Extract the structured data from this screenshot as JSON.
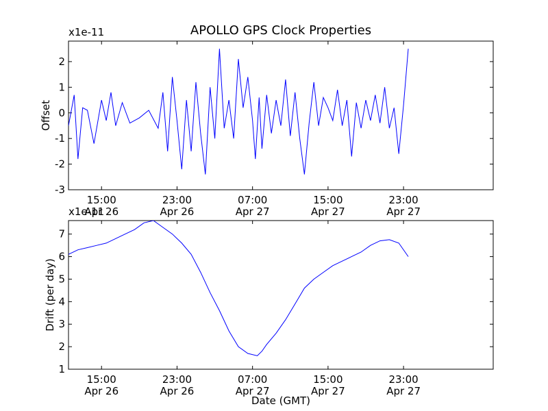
{
  "chart_data": [
    {
      "type": "line",
      "title": "APOLLO GPS Clock Properties",
      "ylabel": "Offset",
      "xlabel": "",
      "scale_label": "x1e-11",
      "ylim": [
        -3,
        2.8
      ],
      "yticks": [
        -3,
        -2,
        -1,
        0,
        1,
        2
      ],
      "xlim": [
        11.5,
        56.5
      ],
      "xtick_labels": [
        {
          "x": 15,
          "line1": "15:00",
          "line2": "Apr 26"
        },
        {
          "x": 23,
          "line1": "23:00",
          "line2": "Apr 26"
        },
        {
          "x": 31,
          "line1": "07:00",
          "line2": "Apr 27"
        },
        {
          "x": 39,
          "line1": "15:00",
          "line2": "Apr 27"
        },
        {
          "x": 47,
          "line1": "23:00",
          "line2": "Apr 27"
        }
      ],
      "color": "#0000ff",
      "series": [
        {
          "x": [
            11.5,
            12.1,
            12.5,
            13,
            13.5,
            14.2,
            15,
            15.5,
            16,
            16.5,
            17.2,
            18,
            19,
            20,
            21,
            21.5,
            22,
            22.5,
            23,
            23.5,
            24,
            24.5,
            25,
            25.5,
            26,
            26.5,
            27,
            27.5,
            28,
            28.5,
            29,
            29.5,
            30,
            30.5,
            31,
            31.3,
            31.7,
            32,
            32.5,
            33,
            33.5,
            34,
            34.5,
            35,
            35.5,
            36,
            36.5,
            37,
            37.5,
            38,
            38.5,
            39,
            39.5,
            40,
            40.5,
            41,
            41.5,
            42,
            42.5,
            43,
            43.5,
            44,
            44.5,
            45,
            45.5,
            46,
            46.5,
            47,
            47.5
          ],
          "values": [
            -0.5,
            0.7,
            -1.8,
            0.2,
            0.1,
            -1.2,
            0.5,
            -0.3,
            0.8,
            -0.5,
            0.4,
            -0.4,
            -0.2,
            0.1,
            -0.6,
            0.8,
            -1.5,
            1.4,
            -0.3,
            -2.2,
            0.5,
            -1.5,
            1.2,
            -0.8,
            -2.4,
            1.0,
            -1.0,
            2.5,
            -0.6,
            0.5,
            -1.0,
            2.1,
            0.2,
            1.4,
            -0.3,
            -1.8,
            0.6,
            -1.4,
            0.7,
            -0.8,
            0.5,
            -0.5,
            1.3,
            -0.9,
            0.8,
            -1.0,
            -2.4,
            -0.4,
            1.2,
            -0.5,
            0.6,
            0.2,
            -0.3,
            0.9,
            -0.5,
            0.5,
            -1.7,
            0.4,
            -0.6,
            0.5,
            -0.3,
            0.7,
            -0.4,
            1.0,
            -0.6,
            0.2,
            -1.6,
            0.3,
            2.5
          ]
        }
      ]
    },
    {
      "type": "line",
      "title": "",
      "ylabel": "Drift (per day)",
      "xlabel": "Date (GMT)",
      "scale_label": "x1e-11",
      "ylim": [
        1,
        7.6
      ],
      "yticks": [
        1,
        2,
        3,
        4,
        5,
        6,
        7
      ],
      "xlim": [
        11.5,
        56.5
      ],
      "xtick_labels": [
        {
          "x": 15,
          "line1": "15:00",
          "line2": "Apr 26"
        },
        {
          "x": 23,
          "line1": "23:00",
          "line2": "Apr 26"
        },
        {
          "x": 31,
          "line1": "07:00",
          "line2": "Apr 27"
        },
        {
          "x": 39,
          "line1": "15:00",
          "line2": "Apr 27"
        },
        {
          "x": 47,
          "line1": "23:00",
          "line2": "Apr 27"
        }
      ],
      "color": "#0000ff",
      "series": [
        {
          "x": [
            11.5,
            12.5,
            13.5,
            14.5,
            15.5,
            16.5,
            17.5,
            18.5,
            19.5,
            20.5,
            21.5,
            22.5,
            23.5,
            24.5,
            25.5,
            26.5,
            27.5,
            28.5,
            29.5,
            30.5,
            31.5,
            32.0,
            32.5,
            33.5,
            34.5,
            35.5,
            36.5,
            37.5,
            38.5,
            39.5,
            40.5,
            41.5,
            42.5,
            43.5,
            44.5,
            45.5,
            46.5,
            47.5
          ],
          "values": [
            6.1,
            6.3,
            6.4,
            6.5,
            6.6,
            6.8,
            7.0,
            7.2,
            7.5,
            7.6,
            7.3,
            7.0,
            6.6,
            6.1,
            5.3,
            4.4,
            3.6,
            2.7,
            2.0,
            1.7,
            1.6,
            1.8,
            2.1,
            2.6,
            3.2,
            3.9,
            4.6,
            5.0,
            5.3,
            5.6,
            5.8,
            6.0,
            6.2,
            6.5,
            6.7,
            6.75,
            6.6,
            6.0
          ]
        }
      ]
    }
  ]
}
